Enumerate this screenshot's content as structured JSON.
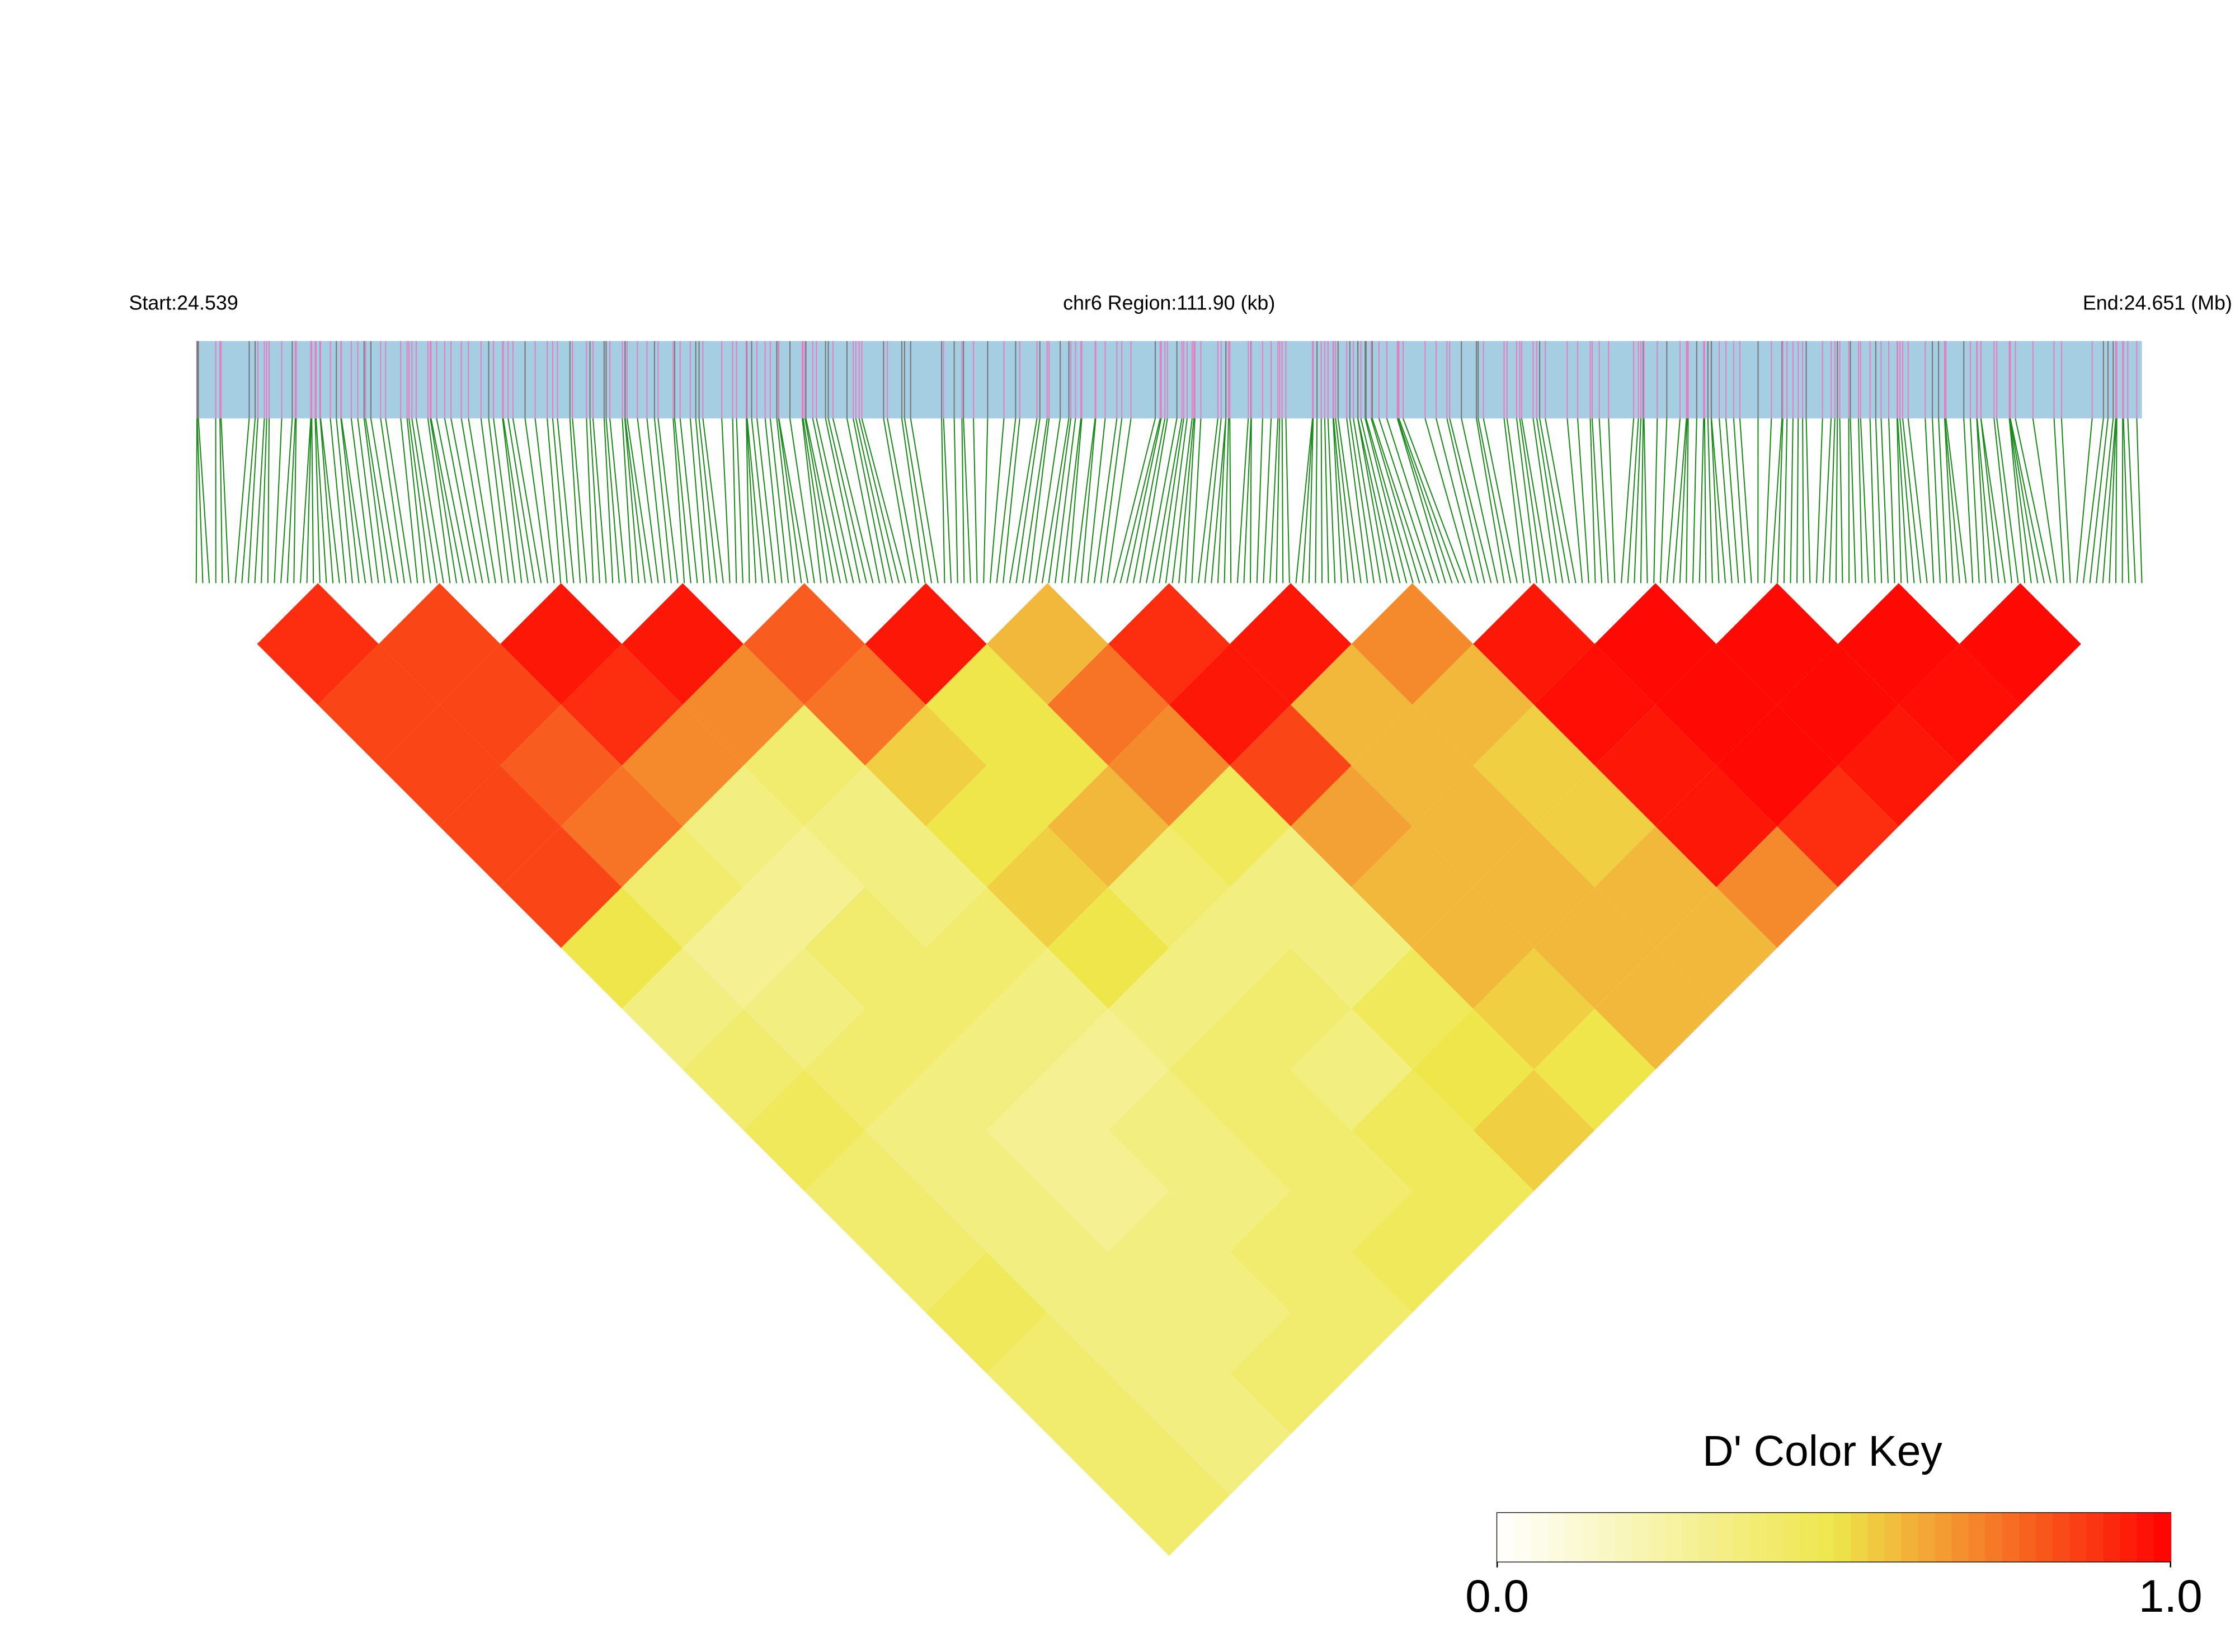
{
  "chart_data": {
    "type": "ld-heatmap",
    "start_label": "Start:24.539",
    "region_label": "chr6 Region:111.90 (kb)",
    "end_label": "End:24.651 (Mb)",
    "ld_by_distance": [
      [
        0.9,
        0.85,
        0.95,
        0.95,
        0.8,
        0.95,
        0.6,
        0.9,
        0.95,
        0.7,
        0.95,
        0.98,
        0.98,
        0.98,
        0.98
      ],
      [
        0.85,
        0.85,
        0.9,
        0.7,
        0.75,
        0.5,
        0.75,
        0.95,
        0.6,
        0.6,
        0.97,
        0.98,
        0.98,
        0.97
      ],
      [
        0.85,
        0.8,
        0.7,
        0.4,
        0.55,
        0.5,
        0.7,
        0.85,
        0.6,
        0.55,
        0.95,
        0.98,
        0.95
      ],
      [
        0.85,
        0.75,
        0.35,
        0.35,
        0.5,
        0.6,
        0.45,
        0.65,
        0.6,
        0.55,
        0.95,
        0.9
      ],
      [
        0.85,
        0.4,
        0.3,
        0.35,
        0.55,
        0.4,
        0.35,
        0.6,
        0.6,
        0.6,
        0.7
      ],
      [
        0.5,
        0.3,
        0.4,
        0.4,
        0.5,
        0.35,
        0.35,
        0.6,
        0.6,
        0.6
      ],
      [
        0.35,
        0.35,
        0.4,
        0.35,
        0.35,
        0.4,
        0.45,
        0.55,
        0.6
      ],
      [
        0.4,
        0.4,
        0.35,
        0.3,
        0.4,
        0.35,
        0.5,
        0.5
      ],
      [
        0.45,
        0.35,
        0.3,
        0.35,
        0.4,
        0.45,
        0.55
      ],
      [
        0.4,
        0.35,
        0.3,
        0.35,
        0.4,
        0.45
      ],
      [
        0.4,
        0.35,
        0.35,
        0.4,
        0.45
      ],
      [
        0.45,
        0.35,
        0.35,
        0.4
      ],
      [
        0.4,
        0.35,
        0.4
      ],
      [
        0.4,
        0.35
      ],
      [
        0.4
      ]
    ],
    "colormap": [
      "#ffffff",
      "#eee64a",
      "#ff0000"
    ],
    "colorbar": {
      "title": "D' Color Key",
      "lim": [
        0,
        1
      ],
      "ticks": [
        {
          "value": 0,
          "label": "0.0"
        },
        {
          "value": 1,
          "label": "1.0"
        }
      ]
    }
  }
}
